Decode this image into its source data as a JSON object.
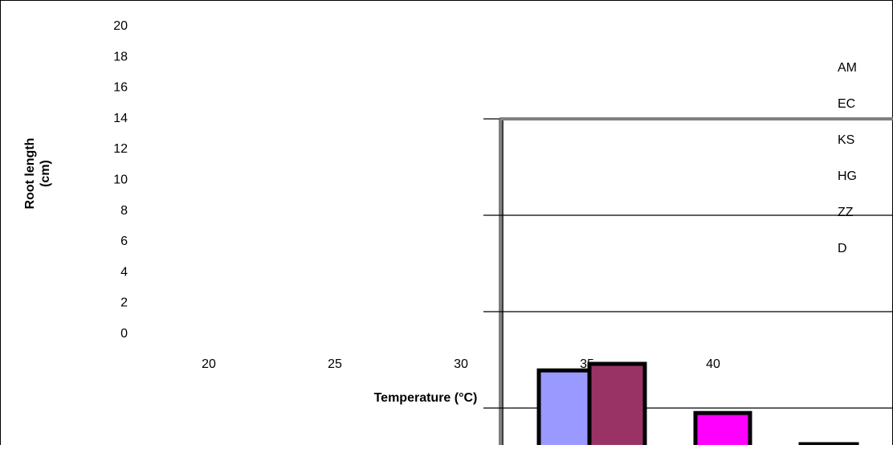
{
  "chart_data": {
    "type": "bar",
    "title": "",
    "xlabel": "Temperature (°C)",
    "ylabel_lines": [
      "Root length",
      "(cm)"
    ],
    "categories": [
      "20",
      "25",
      "30",
      "35",
      "40"
    ],
    "y_ticks": [
      "0",
      "2",
      "4",
      "6",
      "8",
      "10",
      "12",
      "14",
      "16",
      "18",
      "20"
    ],
    "ylim": [
      0,
      20
    ],
    "legend_position": "right",
    "legend": [
      "AM",
      "EC",
      "KS",
      "HG",
      "ZZ",
      "D"
    ],
    "series": [
      {
        "name": "AM",
        "color": "#9999ff"
      },
      {
        "name": "EC",
        "color": "#993366"
      },
      {
        "name": "KS",
        "color": "#ff00ff"
      },
      {
        "name": "HG",
        "color": "#ffffff"
      }
    ],
    "visible_bars": [
      {
        "series": "AM",
        "value": 2.3
      },
      {
        "series": "EC",
        "value": 2.5
      },
      {
        "series": "KS",
        "value": 1.0
      },
      {
        "series": "HG",
        "value": 0.0
      }
    ]
  }
}
